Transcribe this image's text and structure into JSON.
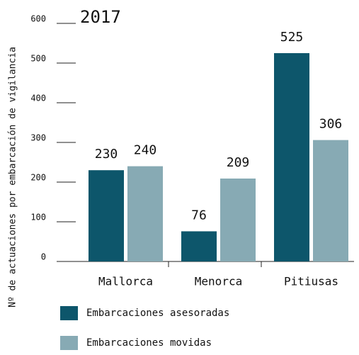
{
  "chart_data": {
    "type": "bar",
    "title": "2017",
    "y_label": "Nº de actuaciones por embarcación de vigilancia",
    "categories": [
      "Mallorca",
      "Menorca",
      "Pitiusas"
    ],
    "series": [
      {
        "name": "Embarcaciones asesoradas",
        "color": "#0d566b",
        "values": [
          230,
          76,
          525
        ]
      },
      {
        "name": "Embarcaciones movidas",
        "color": "#87aab4",
        "values": [
          240,
          209,
          306
        ]
      }
    ],
    "ylim": [
      0,
      600
    ],
    "yticks": [
      0,
      100,
      200,
      300,
      400,
      500,
      600
    ]
  }
}
